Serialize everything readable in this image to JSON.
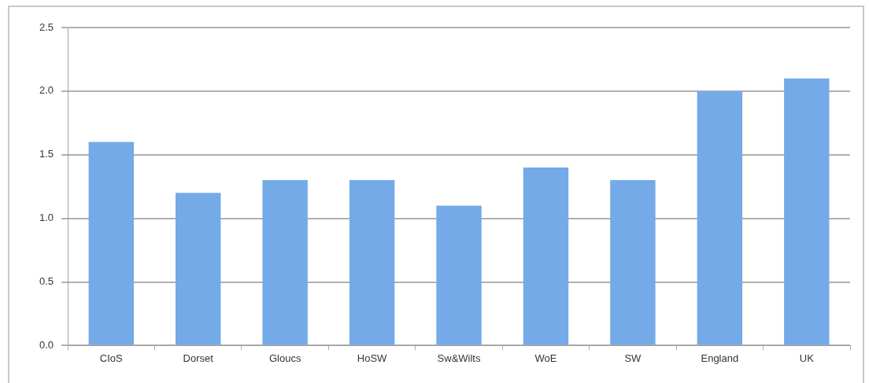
{
  "chart_data": {
    "type": "bar",
    "categories": [
      "CIoS",
      "Dorset",
      "Gloucs",
      "HoSW",
      "Sw&Wilts",
      "WoE",
      "SW",
      "England",
      "UK"
    ],
    "values": [
      1.6,
      1.2,
      1.3,
      1.3,
      1.1,
      1.4,
      1.3,
      2.0,
      2.1
    ],
    "color": "#74aae8",
    "ylim": [
      0,
      2.5
    ],
    "yticks": [
      {
        "value": 0,
        "label": "0.0"
      },
      {
        "value": 0.5,
        "label": "0.5"
      },
      {
        "value": 1,
        "label": "1.0"
      },
      {
        "value": 1.5,
        "label": "1.5"
      },
      {
        "value": 2,
        "label": "2.0"
      },
      {
        "value": 2.5,
        "label": "2.5"
      }
    ],
    "grid": "y"
  }
}
